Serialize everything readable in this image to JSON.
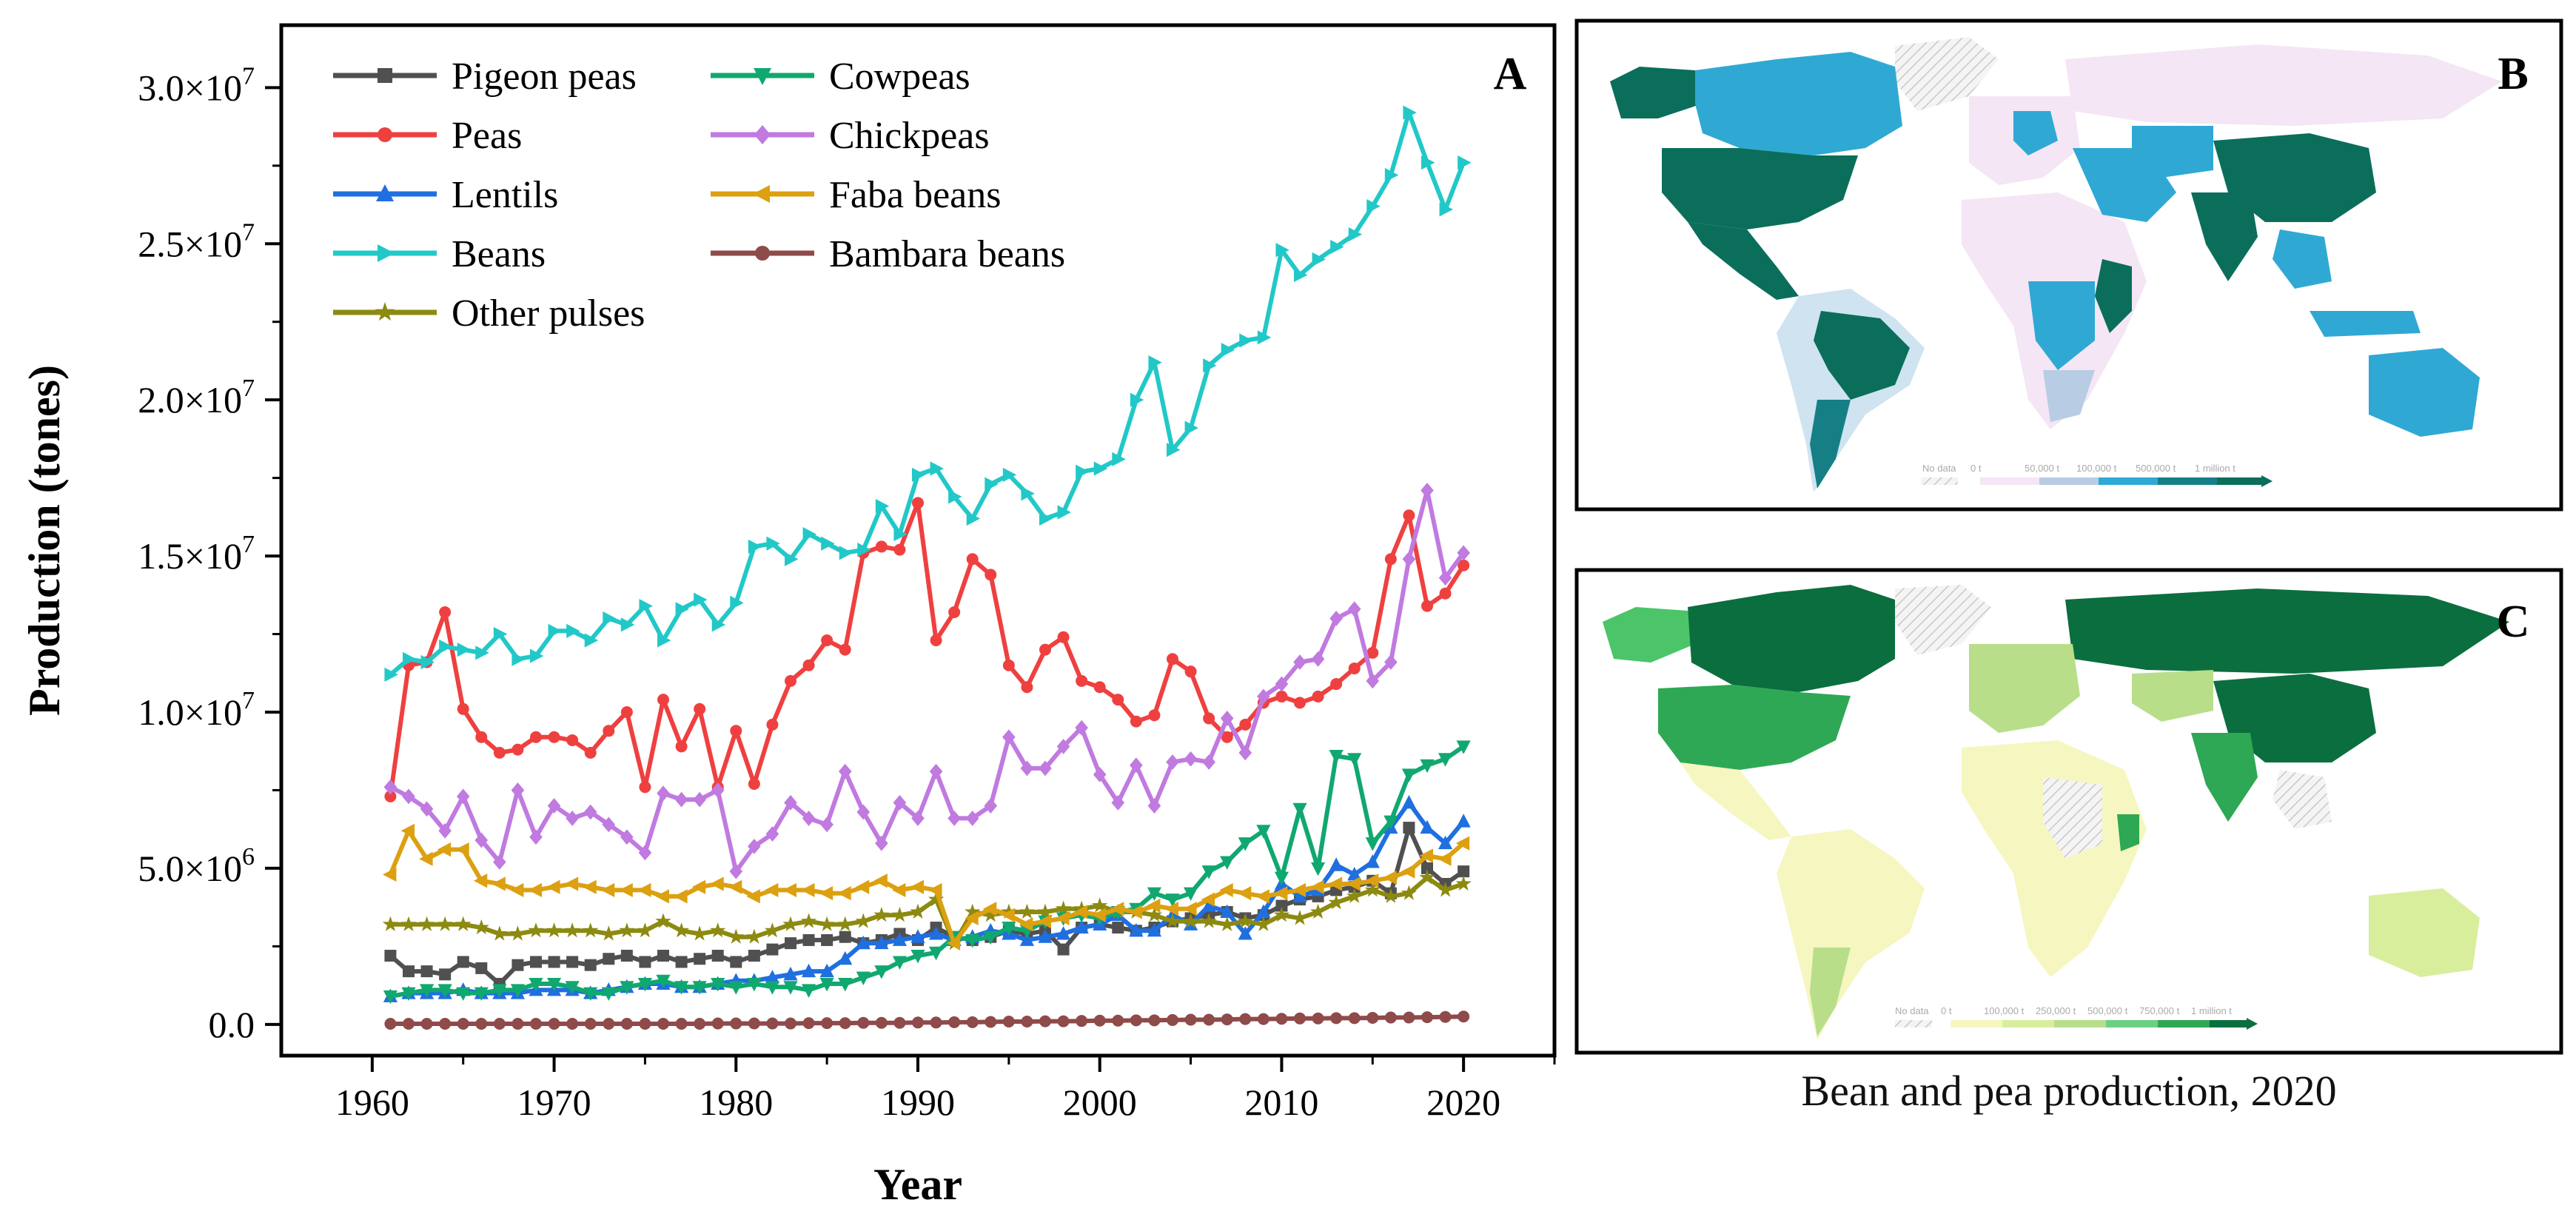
{
  "chart_data": {
    "type": "line",
    "panel_label": "A",
    "xlabel": "Year",
    "ylabel": "Production (tones)",
    "xlim": [
      1955,
      2025
    ],
    "ylim": [
      -1000000,
      32000000
    ],
    "x_ticks": [
      1960,
      1970,
      1980,
      1990,
      2000,
      2010,
      2020
    ],
    "y_ticks": [
      0,
      5000000,
      10000000,
      15000000,
      20000000,
      25000000,
      30000000
    ],
    "y_tick_labels": [
      "0.0",
      "5.0×10",
      "1.0×10",
      "1.5×10",
      "2.0×10",
      "2.5×10",
      "3.0×10"
    ],
    "y_tick_exponents": [
      "",
      "6",
      "7",
      "7",
      "7",
      "7",
      "7"
    ],
    "legend_position": "top-left",
    "x": [
      1961,
      1962,
      1963,
      1964,
      1965,
      1966,
      1967,
      1968,
      1969,
      1970,
      1971,
      1972,
      1973,
      1974,
      1975,
      1976,
      1977,
      1978,
      1979,
      1980,
      1981,
      1982,
      1983,
      1984,
      1985,
      1986,
      1987,
      1988,
      1989,
      1990,
      1991,
      1992,
      1993,
      1994,
      1995,
      1996,
      1997,
      1998,
      1999,
      2000,
      2001,
      2002,
      2003,
      2004,
      2005,
      2006,
      2007,
      2008,
      2009,
      2010,
      2011,
      2012,
      2013,
      2014,
      2015,
      2016,
      2017,
      2018,
      2019,
      2020
    ],
    "series": [
      {
        "name": "Pigeon peas",
        "color": "#505050",
        "marker": "square",
        "values": [
          2200000,
          1700000,
          1700000,
          1600000,
          2000000,
          1800000,
          1300000,
          1900000,
          2000000,
          2000000,
          2000000,
          1900000,
          2100000,
          2200000,
          2000000,
          2200000,
          2000000,
          2100000,
          2200000,
          2000000,
          2200000,
          2400000,
          2600000,
          2700000,
          2700000,
          2800000,
          2600000,
          2700000,
          2900000,
          2700000,
          3100000,
          2800000,
          2700000,
          2800000,
          3000000,
          2900000,
          3000000,
          2400000,
          3100000,
          3200000,
          3100000,
          3000000,
          3100000,
          3300000,
          3400000,
          3500000,
          3600000,
          3400000,
          3500000,
          3800000,
          4000000,
          4100000,
          4300000,
          4400000,
          4600000,
          4200000,
          6300000,
          5000000,
          4500000,
          4900000
        ]
      },
      {
        "name": "Peas",
        "color": "#ef4040",
        "marker": "circle",
        "values": [
          7300000,
          11500000,
          11600000,
          13200000,
          10100000,
          9200000,
          8700000,
          8800000,
          9200000,
          9200000,
          9100000,
          8700000,
          9400000,
          10000000,
          7600000,
          10400000,
          8900000,
          10100000,
          7600000,
          9400000,
          7700000,
          9600000,
          11000000,
          11500000,
          12300000,
          12000000,
          15100000,
          15300000,
          15200000,
          16700000,
          12300000,
          13200000,
          14900000,
          14400000,
          11500000,
          10800000,
          12000000,
          12400000,
          11000000,
          10800000,
          10400000,
          9700000,
          9900000,
          11700000,
          11300000,
          9800000,
          9200000,
          9600000,
          10300000,
          10500000,
          10300000,
          10500000,
          10900000,
          11400000,
          11900000,
          14900000,
          16300000,
          13400000,
          13800000,
          14700000
        ]
      },
      {
        "name": "Lentils",
        "color": "#1f6fe0",
        "marker": "triangle-up",
        "values": [
          900000,
          1000000,
          1000000,
          1000000,
          1100000,
          1000000,
          1000000,
          1000000,
          1100000,
          1100000,
          1100000,
          1000000,
          1100000,
          1200000,
          1300000,
          1300000,
          1200000,
          1200000,
          1300000,
          1400000,
          1400000,
          1500000,
          1600000,
          1700000,
          1700000,
          2100000,
          2600000,
          2600000,
          2700000,
          2800000,
          2900000,
          2700000,
          2800000,
          3000000,
          2900000,
          2700000,
          2800000,
          2900000,
          3100000,
          3200000,
          3500000,
          3000000,
          3000000,
          3500000,
          3200000,
          3800000,
          3600000,
          2900000,
          3600000,
          4500000,
          4100000,
          4300000,
          5100000,
          4800000,
          5200000,
          6300000,
          7100000,
          6300000,
          5800000,
          6500000
        ]
      },
      {
        "name": "Beans",
        "color": "#22c8c8",
        "marker": "triangle-right",
        "values": [
          11200000,
          11700000,
          11600000,
          12100000,
          12000000,
          11900000,
          12500000,
          11700000,
          11800000,
          12600000,
          12600000,
          12300000,
          13000000,
          12800000,
          13400000,
          12300000,
          13300000,
          13600000,
          12800000,
          13500000,
          15300000,
          15400000,
          14900000,
          15700000,
          15400000,
          15100000,
          15200000,
          16600000,
          15700000,
          17600000,
          17800000,
          16900000,
          16200000,
          17300000,
          17600000,
          17000000,
          16200000,
          16400000,
          17700000,
          17800000,
          18100000,
          20000000,
          21200000,
          18400000,
          19100000,
          21100000,
          21600000,
          21900000,
          22000000,
          24800000,
          24000000,
          24500000,
          24900000,
          25300000,
          26200000,
          27200000,
          29200000,
          27600000,
          26100000,
          27600000
        ]
      },
      {
        "name": "Other pulses",
        "color": "#8c8a10",
        "marker": "star",
        "values": [
          3200000,
          3200000,
          3200000,
          3200000,
          3200000,
          3100000,
          2900000,
          2900000,
          3000000,
          3000000,
          3000000,
          3000000,
          2900000,
          3000000,
          3000000,
          3300000,
          3000000,
          2900000,
          3000000,
          2800000,
          2800000,
          3000000,
          3200000,
          3300000,
          3200000,
          3200000,
          3300000,
          3500000,
          3500000,
          3600000,
          4000000,
          2600000,
          3600000,
          3500000,
          3600000,
          3600000,
          3600000,
          3700000,
          3700000,
          3800000,
          3600000,
          3600000,
          3500000,
          3300000,
          3300000,
          3300000,
          3200000,
          3300000,
          3200000,
          3500000,
          3400000,
          3600000,
          3900000,
          4100000,
          4300000,
          4100000,
          4200000,
          4700000,
          4300000,
          4500000
        ]
      },
      {
        "name": "Cowpeas",
        "color": "#10a870",
        "marker": "triangle-down",
        "values": [
          900000,
          1000000,
          1100000,
          1100000,
          1000000,
          1000000,
          1100000,
          1100000,
          1300000,
          1300000,
          1200000,
          1000000,
          1000000,
          1200000,
          1300000,
          1400000,
          1200000,
          1200000,
          1300000,
          1200000,
          1300000,
          1200000,
          1200000,
          1100000,
          1300000,
          1300000,
          1500000,
          1700000,
          2000000,
          2200000,
          2300000,
          2800000,
          2700000,
          2800000,
          3100000,
          3000000,
          3300000,
          3400000,
          3500000,
          3400000,
          3600000,
          3700000,
          4200000,
          4000000,
          4200000,
          4900000,
          5200000,
          5800000,
          6200000,
          4700000,
          6900000,
          5000000,
          8600000,
          8500000,
          5800000,
          6500000,
          8000000,
          8300000,
          8500000,
          8900000
        ]
      },
      {
        "name": "Chickpeas",
        "color": "#c07ae0",
        "marker": "diamond",
        "values": [
          7600000,
          7300000,
          6900000,
          6200000,
          7300000,
          5900000,
          5200000,
          7500000,
          6000000,
          7000000,
          6600000,
          6800000,
          6400000,
          6000000,
          5500000,
          7400000,
          7200000,
          7200000,
          7500000,
          4900000,
          5700000,
          6100000,
          7100000,
          6600000,
          6400000,
          8100000,
          6800000,
          5800000,
          7100000,
          6600000,
          8100000,
          6600000,
          6600000,
          7000000,
          9200000,
          8200000,
          8200000,
          8900000,
          9500000,
          8000000,
          7100000,
          8300000,
          7000000,
          8400000,
          8500000,
          8400000,
          9800000,
          8700000,
          10500000,
          10900000,
          11600000,
          11700000,
          13000000,
          13300000,
          11000000,
          11600000,
          14900000,
          17100000,
          14300000,
          15100000
        ]
      },
      {
        "name": "Faba beans",
        "color": "#dca010",
        "marker": "triangle-left",
        "values": [
          4800000,
          6200000,
          5300000,
          5600000,
          5600000,
          4600000,
          4500000,
          4300000,
          4300000,
          4400000,
          4500000,
          4400000,
          4300000,
          4300000,
          4300000,
          4100000,
          4100000,
          4400000,
          4500000,
          4400000,
          4100000,
          4300000,
          4300000,
          4300000,
          4200000,
          4200000,
          4400000,
          4600000,
          4300000,
          4400000,
          4300000,
          2600000,
          3400000,
          3700000,
          3500000,
          3200000,
          3300000,
          3400000,
          3600000,
          3500000,
          3700000,
          3600000,
          3800000,
          3700000,
          3700000,
          4000000,
          4300000,
          4200000,
          4100000,
          4200000,
          4300000,
          4400000,
          4500000,
          4500000,
          4600000,
          4700000,
          4900000,
          5400000,
          5300000,
          5800000
        ]
      },
      {
        "name": "Bambara beans",
        "color": "#8f4a4a",
        "marker": "circle",
        "values": [
          20000,
          20000,
          20000,
          20000,
          20000,
          20000,
          20000,
          20000,
          20000,
          20000,
          20000,
          20000,
          20000,
          20000,
          20000,
          20000,
          20000,
          20000,
          30000,
          30000,
          30000,
          30000,
          30000,
          40000,
          40000,
          40000,
          50000,
          50000,
          50000,
          60000,
          60000,
          70000,
          70000,
          80000,
          90000,
          90000,
          100000,
          100000,
          110000,
          120000,
          120000,
          130000,
          130000,
          140000,
          150000,
          150000,
          160000,
          170000,
          170000,
          180000,
          190000,
          190000,
          200000,
          200000,
          210000,
          220000,
          220000,
          230000,
          240000,
          250000
        ]
      }
    ]
  },
  "panel_b": {
    "label": "B",
    "legend_labels": [
      "No data",
      "0 t",
      "50,000 t",
      "100,000 t",
      "500,000 t",
      "1 million t"
    ]
  },
  "panel_c": {
    "label": "C",
    "legend_labels": [
      "No data",
      "0 t",
      "100,000 t",
      "250,000 t",
      "500,000 t",
      "750,000 t",
      "1 million t"
    ]
  },
  "caption": "Bean and pea production, 2020"
}
